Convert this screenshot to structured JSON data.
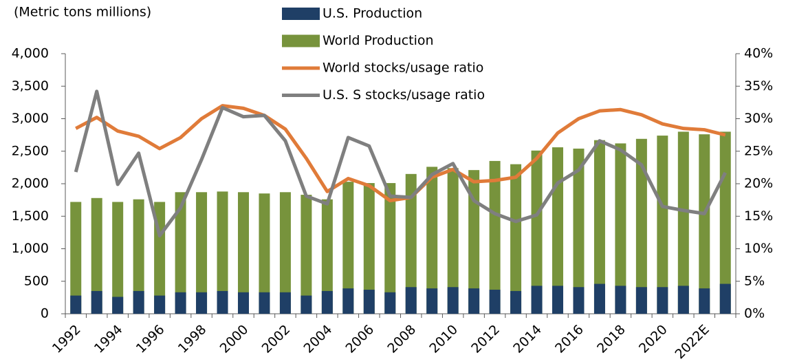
{
  "chart_data": {
    "type": "bar_line",
    "title": "(Metric tons millions)",
    "categories": [
      "1992",
      null,
      "1994",
      null,
      "1996",
      null,
      "1998",
      null,
      "2000",
      null,
      "2002",
      null,
      "2004",
      null,
      "2006",
      null,
      "2008",
      null,
      "2010",
      null,
      "2012",
      null,
      "2014",
      null,
      "2016",
      null,
      "2018",
      null,
      "2020",
      null,
      "2022E",
      null
    ],
    "series": [
      {
        "name": "U.S. Production",
        "kind": "bar",
        "color": "#1f3f66",
        "values": [
          280,
          350,
          260,
          350,
          280,
          330,
          330,
          350,
          330,
          330,
          330,
          280,
          350,
          390,
          370,
          330,
          410,
          390,
          410,
          390,
          370,
          350,
          430,
          430,
          410,
          460,
          430,
          410,
          410,
          430,
          390,
          460
        ]
      },
      {
        "name": "World Production",
        "kind": "bar",
        "color": "#77933c",
        "values": [
          1720,
          1780,
          1720,
          1760,
          1720,
          1870,
          1870,
          1880,
          1870,
          1850,
          1870,
          1830,
          1760,
          2030,
          2010,
          2010,
          2150,
          2260,
          2240,
          2210,
          2350,
          2300,
          2510,
          2560,
          2540,
          2670,
          2620,
          2690,
          2740,
          2800,
          2760,
          2800
        ]
      },
      {
        "name": "World stocks/usage ratio",
        "kind": "line",
        "axis": "y2",
        "color": "#e07b39",
        "values": [
          28.5,
          30.2,
          28.1,
          27.3,
          25.4,
          27.1,
          30,
          32,
          31.6,
          30.5,
          28.4,
          23.9,
          18.8,
          20.8,
          19.7,
          17.4,
          17.9,
          21,
          22.2,
          20.3,
          20.5,
          21,
          23.9,
          27.8,
          30,
          31.2,
          31.4,
          30.6,
          29.2,
          28.5,
          28.3,
          27.5
        ]
      },
      {
        "name": "U.S. S stocks/usage ratio",
        "kind": "line",
        "axis": "y2",
        "color": "#7f7f7f",
        "values": [
          21.8,
          34.2,
          19.9,
          24.7,
          12,
          16.3,
          23.7,
          31.7,
          30.3,
          30.5,
          26.6,
          18.1,
          16.9,
          27.1,
          25.8,
          18.1,
          17.9,
          21.4,
          23.1,
          17.4,
          15.4,
          14.2,
          15.2,
          20.1,
          22.1,
          26.6,
          25.2,
          22.9,
          16.5,
          15.9,
          15.4,
          21.7
        ]
      }
    ],
    "ylim": [
      0,
      4000
    ],
    "yticks": [
      0,
      500,
      {
        "value": 1000,
        "label": "1,000"
      },
      {
        "value": 1500,
        "label": "1,500"
      },
      {
        "value": 2000,
        "label": "2,000"
      },
      {
        "value": 2500,
        "label": "2,500"
      },
      {
        "value": 3000,
        "label": "3,000"
      },
      {
        "value": 3500,
        "label": "3,500"
      },
      {
        "value": 4000,
        "label": "4,000"
      }
    ],
    "y2lim": [
      0,
      40
    ],
    "y2ticks": [
      {
        "value": 0,
        "label": "0%"
      },
      {
        "value": 5,
        "label": "5%"
      },
      {
        "value": 10,
        "label": "10%"
      },
      {
        "value": 15,
        "label": "15%"
      },
      {
        "value": 20,
        "label": "20%"
      },
      {
        "value": 25,
        "label": "25%"
      },
      {
        "value": 30,
        "label": "30%"
      },
      {
        "value": 35,
        "label": "35%"
      },
      {
        "value": 40,
        "label": "40%"
      }
    ]
  }
}
